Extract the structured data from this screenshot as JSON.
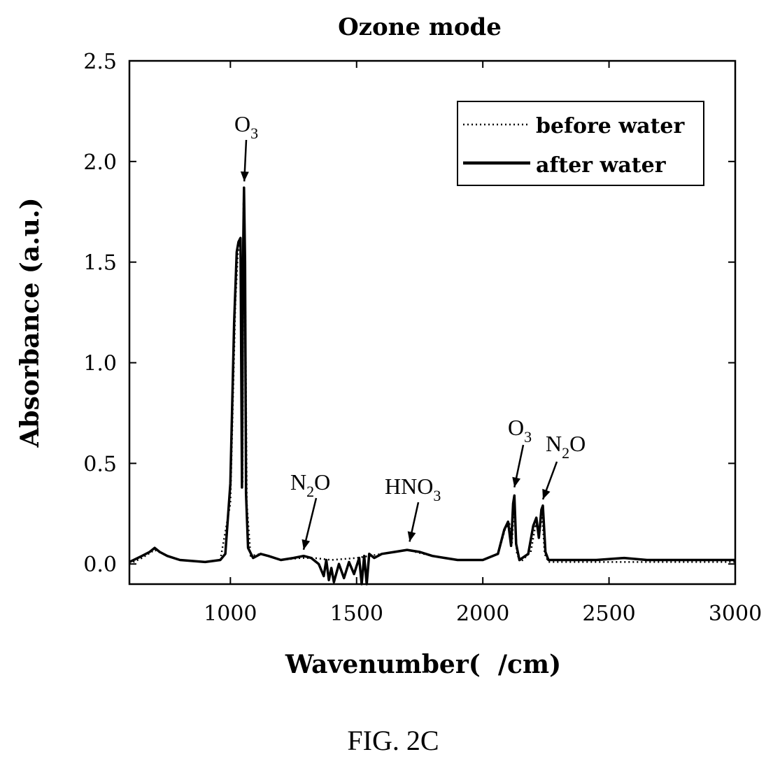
{
  "chart_data": {
    "type": "line",
    "title": "Ozone mode",
    "xlabel": "Wavenumber(  /cm)",
    "ylabel": "Absorbance (a.u.)",
    "xlim": [
      600,
      3000
    ],
    "ylim": [
      -0.1,
      2.5
    ],
    "xticks": [
      "1000",
      "1500",
      "2000",
      "2500",
      "3000"
    ],
    "xtick_values": [
      1000,
      1500,
      2000,
      2500,
      3000
    ],
    "yticks": [
      "0.0",
      "0.5",
      "1.0",
      "1.5",
      "2.0",
      "2.5"
    ],
    "ytick_values": [
      0.0,
      0.5,
      1.0,
      1.5,
      2.0,
      2.5
    ],
    "legend": {
      "placement": "top-right"
    },
    "grid": false,
    "series": [
      {
        "name": "before water",
        "style": "dotted",
        "color": "#000000",
        "points": [
          [
            600,
            0.0
          ],
          [
            650,
            0.03
          ],
          [
            700,
            0.07
          ],
          [
            750,
            0.04
          ],
          [
            800,
            0.02
          ],
          [
            900,
            0.01
          ],
          [
            960,
            0.02
          ],
          [
            1000,
            0.3
          ],
          [
            1020,
            1.3
          ],
          [
            1030,
            1.55
          ],
          [
            1040,
            1.6
          ],
          [
            1048,
            0.4
          ],
          [
            1052,
            1.8
          ],
          [
            1058,
            1.5
          ],
          [
            1065,
            0.3
          ],
          [
            1080,
            0.04
          ],
          [
            1120,
            0.05
          ],
          [
            1200,
            0.02
          ],
          [
            1280,
            0.03
          ],
          [
            1330,
            0.03
          ],
          [
            1400,
            0.02
          ],
          [
            1500,
            0.03
          ],
          [
            1600,
            0.05
          ],
          [
            1700,
            0.07
          ],
          [
            1800,
            0.04
          ],
          [
            1900,
            0.02
          ],
          [
            2000,
            0.02
          ],
          [
            2060,
            0.05
          ],
          [
            2090,
            0.18
          ],
          [
            2105,
            0.2
          ],
          [
            2115,
            0.1
          ],
          [
            2125,
            0.3
          ],
          [
            2135,
            0.05
          ],
          [
            2150,
            0.01
          ],
          [
            2190,
            0.06
          ],
          [
            2210,
            0.2
          ],
          [
            2225,
            0.15
          ],
          [
            2235,
            0.25
          ],
          [
            2245,
            0.05
          ],
          [
            2260,
            0.01
          ],
          [
            2400,
            0.01
          ],
          [
            2600,
            0.01
          ],
          [
            2800,
            0.01
          ],
          [
            3000,
            0.01
          ]
        ]
      },
      {
        "name": "after water",
        "style": "solid",
        "color": "#000000",
        "points": [
          [
            600,
            0.01
          ],
          [
            650,
            0.04
          ],
          [
            680,
            0.06
          ],
          [
            700,
            0.08
          ],
          [
            720,
            0.06
          ],
          [
            750,
            0.04
          ],
          [
            800,
            0.02
          ],
          [
            900,
            0.01
          ],
          [
            960,
            0.02
          ],
          [
            980,
            0.05
          ],
          [
            1000,
            0.4
          ],
          [
            1015,
            1.2
          ],
          [
            1025,
            1.55
          ],
          [
            1032,
            1.6
          ],
          [
            1040,
            1.62
          ],
          [
            1046,
            0.38
          ],
          [
            1050,
            1.5
          ],
          [
            1054,
            1.87
          ],
          [
            1058,
            1.5
          ],
          [
            1062,
            0.35
          ],
          [
            1070,
            0.08
          ],
          [
            1090,
            0.03
          ],
          [
            1120,
            0.05
          ],
          [
            1150,
            0.04
          ],
          [
            1200,
            0.02
          ],
          [
            1250,
            0.03
          ],
          [
            1290,
            0.04
          ],
          [
            1320,
            0.03
          ],
          [
            1350,
            0.0
          ],
          [
            1370,
            -0.06
          ],
          [
            1380,
            0.02
          ],
          [
            1390,
            -0.08
          ],
          [
            1400,
            -0.02
          ],
          [
            1410,
            -0.09
          ],
          [
            1430,
            0.0
          ],
          [
            1450,
            -0.07
          ],
          [
            1470,
            0.01
          ],
          [
            1490,
            -0.05
          ],
          [
            1510,
            0.03
          ],
          [
            1520,
            -0.1
          ],
          [
            1530,
            0.04
          ],
          [
            1540,
            -0.1
          ],
          [
            1550,
            0.05
          ],
          [
            1570,
            0.03
          ],
          [
            1600,
            0.05
          ],
          [
            1650,
            0.06
          ],
          [
            1700,
            0.07
          ],
          [
            1750,
            0.06
          ],
          [
            1800,
            0.04
          ],
          [
            1850,
            0.03
          ],
          [
            1900,
            0.02
          ],
          [
            2000,
            0.02
          ],
          [
            2060,
            0.05
          ],
          [
            2085,
            0.17
          ],
          [
            2100,
            0.21
          ],
          [
            2112,
            0.09
          ],
          [
            2120,
            0.3
          ],
          [
            2125,
            0.34
          ],
          [
            2132,
            0.1
          ],
          [
            2145,
            0.02
          ],
          [
            2180,
            0.05
          ],
          [
            2200,
            0.19
          ],
          [
            2212,
            0.23
          ],
          [
            2222,
            0.13
          ],
          [
            2232,
            0.27
          ],
          [
            2238,
            0.29
          ],
          [
            2248,
            0.06
          ],
          [
            2260,
            0.02
          ],
          [
            2350,
            0.02
          ],
          [
            2450,
            0.02
          ],
          [
            2560,
            0.03
          ],
          [
            2650,
            0.02
          ],
          [
            2800,
            0.02
          ],
          [
            3000,
            0.02
          ]
        ]
      }
    ],
    "annotations": [
      {
        "base": "O",
        "sub": "3",
        "x": 1055,
        "y": 1.88
      },
      {
        "base": "N",
        "sub": "2",
        "tail": "O",
        "x": 1290,
        "y": 0.05
      },
      {
        "base": "HNO",
        "sub": "3",
        "x": 1710,
        "y": 0.09
      },
      {
        "base": "O",
        "sub": "3",
        "x": 2125,
        "y": 0.36
      },
      {
        "base": "N",
        "sub": "2",
        "tail": "O",
        "x": 2238,
        "y": 0.3
      }
    ]
  },
  "figure_caption": "FIG. 2C"
}
